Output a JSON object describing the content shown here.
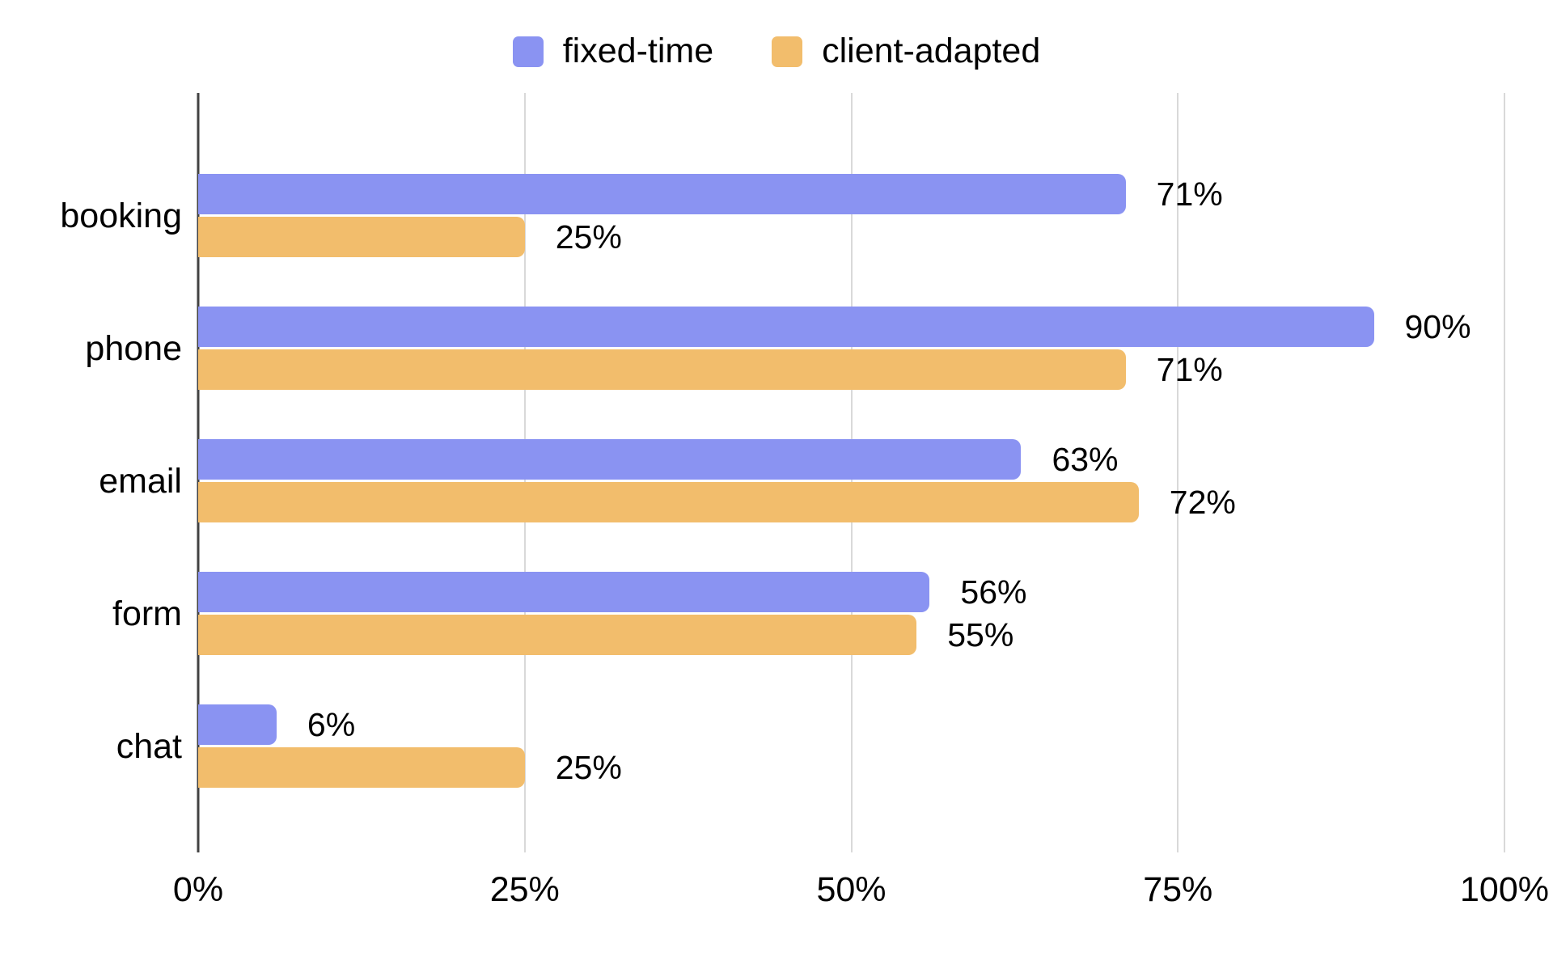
{
  "chart_data": {
    "type": "bar",
    "orientation": "horizontal",
    "title": "",
    "xlabel": "",
    "ylabel": "",
    "categories": [
      "booking",
      "phone",
      "email",
      "form",
      "chat"
    ],
    "series": [
      {
        "name": "fixed-time",
        "color": "#8A93F2",
        "values": [
          71,
          90,
          63,
          56,
          6
        ]
      },
      {
        "name": "client-adapted",
        "color": "#F2BD6C",
        "values": [
          25,
          71,
          72,
          55,
          25
        ]
      }
    ],
    "value_labels": [
      [
        "71%",
        "90%",
        "63%",
        "56%",
        "6%"
      ],
      [
        "25%",
        "71%",
        "72%",
        "55%",
        "25%"
      ]
    ],
    "x_axis": {
      "range": [
        0,
        100
      ],
      "tick_values": [
        0,
        25,
        50,
        75,
        100
      ],
      "tick_labels": [
        "0%",
        "25%",
        "50%",
        "75%",
        "100%"
      ]
    },
    "grid": true,
    "legend_position": "top",
    "style": {
      "background_color": "#ffffff",
      "gridline_color": "#d9d9d9",
      "axis_line_color": "#424242",
      "text_color": "#000000"
    }
  }
}
